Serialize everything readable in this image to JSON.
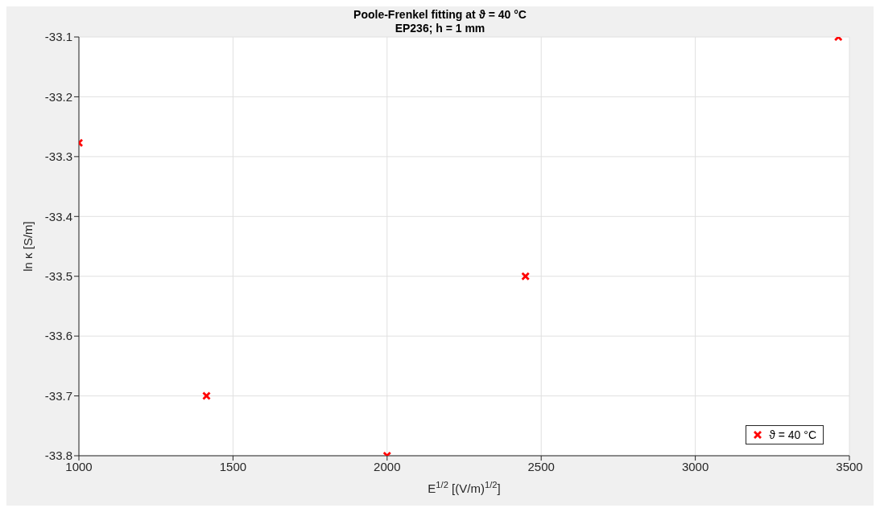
{
  "chart_data": {
    "type": "scatter",
    "title": "Poole-Frenkel fitting at ϑ = 40 °C",
    "subtitle": "EP236; h = 1 mm",
    "xlabel": "E$^{1/2}$ [(V/m)$^{1/2}$]",
    "ylabel": "ln κ [S/m]",
    "x": [
      1000,
      1414,
      2000,
      2449,
      3464
    ],
    "series": [
      {
        "name": "ϑ = 40 °C",
        "color": "#ff0000",
        "values": [
          -33.277,
          -33.7,
          -33.8,
          -33.5,
          -33.1
        ]
      }
    ],
    "xlim": [
      1000,
      3500
    ],
    "xticks": [
      1000,
      1500,
      2000,
      2500,
      3000,
      3500
    ],
    "ylim": [
      -33.8,
      -33.1
    ],
    "yticks": [
      -33.8,
      -33.7,
      -33.6,
      -33.5,
      -33.4,
      -33.3,
      -33.2,
      -33.1
    ],
    "grid": true,
    "legend": "bottom right",
    "marker": "cross"
  }
}
